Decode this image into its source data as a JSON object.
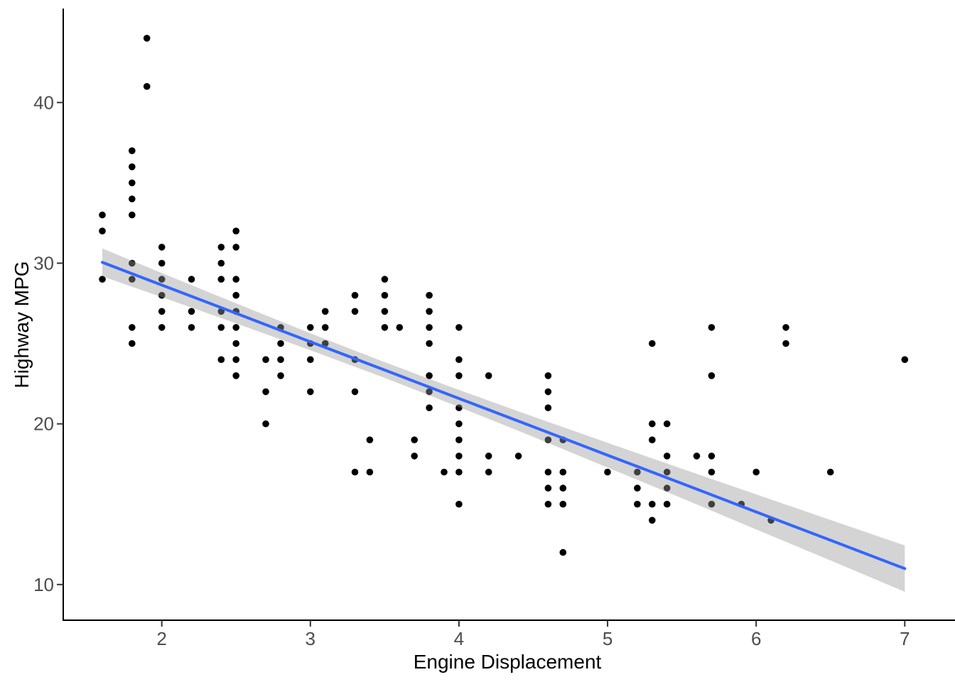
{
  "figure": {
    "background": "#FFFFFF"
  },
  "axes": {
    "axis_line_color": "#000000",
    "tick_color": "#333333",
    "tick_label_color": "#4D4D4D",
    "title_color": "#000000"
  },
  "chart_data": {
    "type": "scatter",
    "title": "",
    "xlabel": "Engine Displacement",
    "ylabel": "Highway MPG",
    "x_ticks": [
      2,
      3,
      4,
      5,
      6,
      7
    ],
    "y_ticks": [
      10,
      20,
      30,
      40
    ],
    "xlim": [
      1.337,
      7.338
    ],
    "ylim": [
      7.78,
      45.85
    ],
    "grid": "off",
    "legend": "none",
    "point_color": "#000000",
    "point_radius": 4.8,
    "points": [
      [
        1.6,
        33
      ],
      [
        1.6,
        32
      ],
      [
        1.6,
        29
      ],
      [
        1.8,
        37
      ],
      [
        1.8,
        36
      ],
      [
        1.8,
        35
      ],
      [
        1.8,
        34
      ],
      [
        1.8,
        33
      ],
      [
        1.8,
        30
      ],
      [
        1.8,
        29
      ],
      [
        1.8,
        26
      ],
      [
        1.8,
        25
      ],
      [
        1.9,
        44
      ],
      [
        1.9,
        41
      ],
      [
        2.0,
        31
      ],
      [
        2.0,
        30
      ],
      [
        2.0,
        29
      ],
      [
        2.0,
        28
      ],
      [
        2.0,
        27
      ],
      [
        2.0,
        26
      ],
      [
        2.2,
        29
      ],
      [
        2.2,
        27
      ],
      [
        2.2,
        26
      ],
      [
        2.4,
        31
      ],
      [
        2.4,
        30
      ],
      [
        2.4,
        29
      ],
      [
        2.4,
        27
      ],
      [
        2.4,
        26
      ],
      [
        2.4,
        24
      ],
      [
        2.5,
        32
      ],
      [
        2.5,
        31
      ],
      [
        2.5,
        29
      ],
      [
        2.5,
        28
      ],
      [
        2.5,
        27
      ],
      [
        2.5,
        26
      ],
      [
        2.5,
        25
      ],
      [
        2.5,
        24
      ],
      [
        2.5,
        23
      ],
      [
        2.7,
        24
      ],
      [
        2.7,
        22
      ],
      [
        2.7,
        20
      ],
      [
        2.8,
        26
      ],
      [
        2.8,
        25
      ],
      [
        2.8,
        24
      ],
      [
        2.8,
        23
      ],
      [
        3.0,
        26
      ],
      [
        3.0,
        25
      ],
      [
        3.0,
        24
      ],
      [
        3.0,
        22
      ],
      [
        3.1,
        27
      ],
      [
        3.1,
        26
      ],
      [
        3.1,
        25
      ],
      [
        3.3,
        28
      ],
      [
        3.3,
        27
      ],
      [
        3.3,
        24
      ],
      [
        3.3,
        22
      ],
      [
        3.3,
        17
      ],
      [
        3.4,
        19
      ],
      [
        3.4,
        17
      ],
      [
        3.5,
        29
      ],
      [
        3.5,
        28
      ],
      [
        3.5,
        27
      ],
      [
        3.5,
        26
      ],
      [
        3.6,
        26
      ],
      [
        3.7,
        19
      ],
      [
        3.7,
        18
      ],
      [
        3.8,
        28
      ],
      [
        3.8,
        27
      ],
      [
        3.8,
        26
      ],
      [
        3.8,
        25
      ],
      [
        3.8,
        23
      ],
      [
        3.8,
        22
      ],
      [
        3.8,
        21
      ],
      [
        3.9,
        17
      ],
      [
        4.0,
        26
      ],
      [
        4.0,
        24
      ],
      [
        4.0,
        23
      ],
      [
        4.0,
        21
      ],
      [
        4.0,
        20
      ],
      [
        4.0,
        19
      ],
      [
        4.0,
        18
      ],
      [
        4.0,
        17
      ],
      [
        4.0,
        15
      ],
      [
        4.2,
        23
      ],
      [
        4.2,
        18
      ],
      [
        4.2,
        17
      ],
      [
        4.4,
        18
      ],
      [
        4.6,
        23
      ],
      [
        4.6,
        22
      ],
      [
        4.6,
        21
      ],
      [
        4.6,
        19
      ],
      [
        4.6,
        17
      ],
      [
        4.6,
        16
      ],
      [
        4.6,
        15
      ],
      [
        4.7,
        19
      ],
      [
        4.7,
        17
      ],
      [
        4.7,
        16
      ],
      [
        4.7,
        15
      ],
      [
        4.7,
        12
      ],
      [
        5.0,
        17
      ],
      [
        5.2,
        17
      ],
      [
        5.2,
        16
      ],
      [
        5.2,
        15
      ],
      [
        5.3,
        25
      ],
      [
        5.3,
        20
      ],
      [
        5.3,
        19
      ],
      [
        5.3,
        15
      ],
      [
        5.3,
        14
      ],
      [
        5.4,
        20
      ],
      [
        5.4,
        18
      ],
      [
        5.4,
        17
      ],
      [
        5.4,
        16
      ],
      [
        5.4,
        15
      ],
      [
        5.6,
        18
      ],
      [
        5.7,
        26
      ],
      [
        5.7,
        23
      ],
      [
        5.7,
        18
      ],
      [
        5.7,
        17
      ],
      [
        5.7,
        15
      ],
      [
        5.9,
        15
      ],
      [
        6.0,
        17
      ],
      [
        6.1,
        14
      ],
      [
        6.2,
        26
      ],
      [
        6.2,
        25
      ],
      [
        6.5,
        17
      ],
      [
        7.0,
        24
      ]
    ],
    "regression": {
      "type": "linear",
      "color": "#3366FF",
      "line_width": 4,
      "ci_fill": "rgba(153,153,153,0.42)",
      "x": [
        1.6,
        2.0,
        2.5,
        3.0,
        3.5,
        4.0,
        4.5,
        5.0,
        5.5,
        6.0,
        6.5,
        7.0
      ],
      "fit": [
        30.05,
        28.64,
        26.88,
        25.11,
        23.35,
        21.58,
        19.82,
        18.05,
        16.29,
        14.52,
        12.76,
        10.99
      ],
      "lower": [
        29.18,
        27.89,
        26.26,
        24.58,
        22.86,
        21.05,
        19.19,
        17.28,
        15.37,
        13.43,
        11.5,
        9.55
      ],
      "upper": [
        30.92,
        29.39,
        27.5,
        25.64,
        23.84,
        22.11,
        20.45,
        18.82,
        17.21,
        15.61,
        14.02,
        12.43
      ]
    }
  }
}
